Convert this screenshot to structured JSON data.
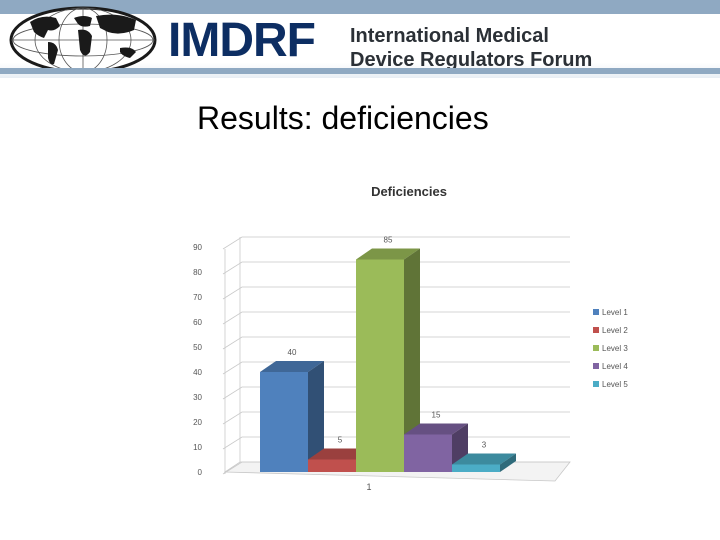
{
  "header": {
    "logo_text": "IMDRF",
    "org_name_line1": "International Medical",
    "org_name_line2": "Device Regulators Forum",
    "logo_icon": "world-globe-icon"
  },
  "slide": {
    "title": "Results: deficiencies"
  },
  "chart_data": {
    "type": "bar",
    "style": "3d-clustered-column",
    "title": "Deficiencies",
    "categories": [
      "1"
    ],
    "series": [
      {
        "name": "Level 1",
        "values": [
          40
        ],
        "color": "#4f81bd"
      },
      {
        "name": "Level 2",
        "values": [
          5
        ],
        "color": "#c0504d"
      },
      {
        "name": "Level 3",
        "values": [
          85
        ],
        "color": "#9bbb59"
      },
      {
        "name": "Level 4",
        "values": [
          15
        ],
        "color": "#8064a2"
      },
      {
        "name": "Level 5",
        "values": [
          3
        ],
        "color": "#4bacc6"
      }
    ],
    "data_labels": [
      "40",
      "5",
      "85",
      "15",
      "3"
    ],
    "ylim": [
      0,
      90
    ],
    "yticks": [
      "0",
      "10",
      "20",
      "30",
      "40",
      "50",
      "60",
      "70",
      "80",
      "90"
    ],
    "grid": true,
    "legend_position": "right"
  }
}
